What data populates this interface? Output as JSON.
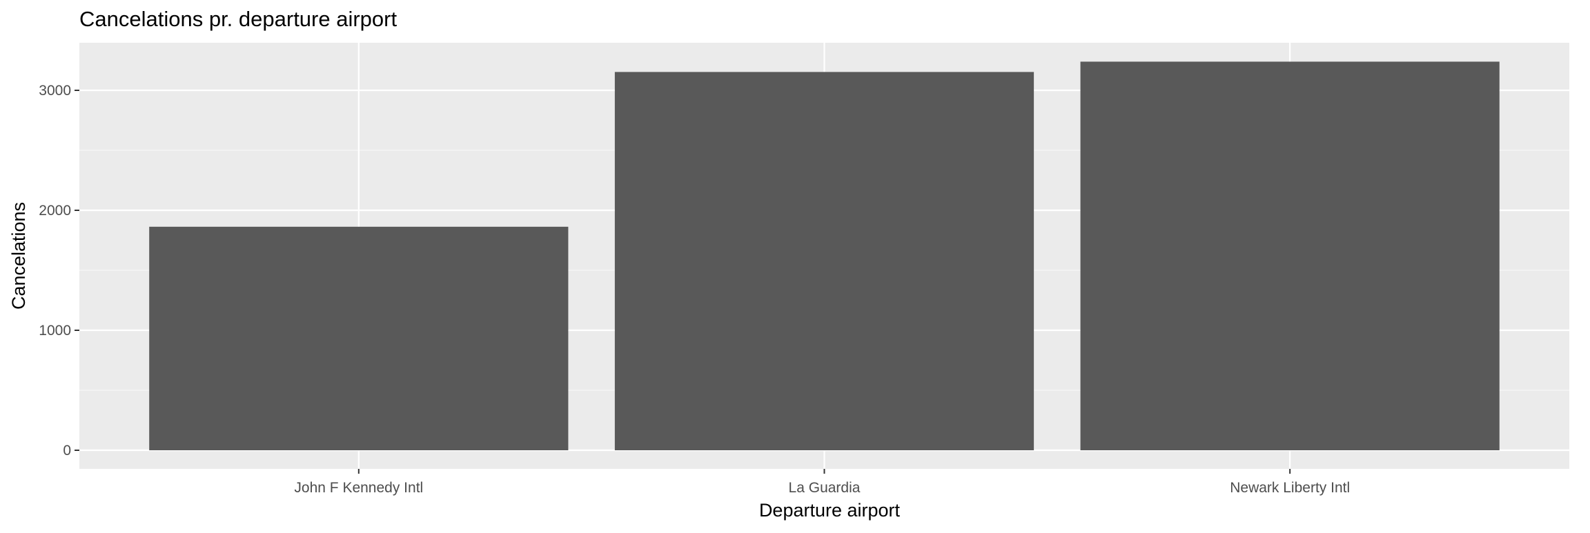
{
  "chart_data": {
    "type": "bar",
    "title": "Cancelations pr. departure airport",
    "xlabel": "Departure airport",
    "ylabel": "Cancelations",
    "categories": [
      "John F Kennedy Intl",
      "La Guardia",
      "Newark Liberty Intl"
    ],
    "values": [
      1863,
      3153,
      3239
    ],
    "ylim": [
      0,
      3400
    ],
    "yticks": [
      0,
      1000,
      2000,
      3000
    ],
    "ytick_labels": [
      "0",
      "1000",
      "2000",
      "3000"
    ],
    "grid": true,
    "legend": "none",
    "colors": {
      "bar": "#595959",
      "panel": "#ebebeb",
      "grid_major": "#ffffff",
      "grid_minor": "#f5f5f5",
      "tick_label": "#4d4d4d",
      "text": "#000000"
    }
  }
}
